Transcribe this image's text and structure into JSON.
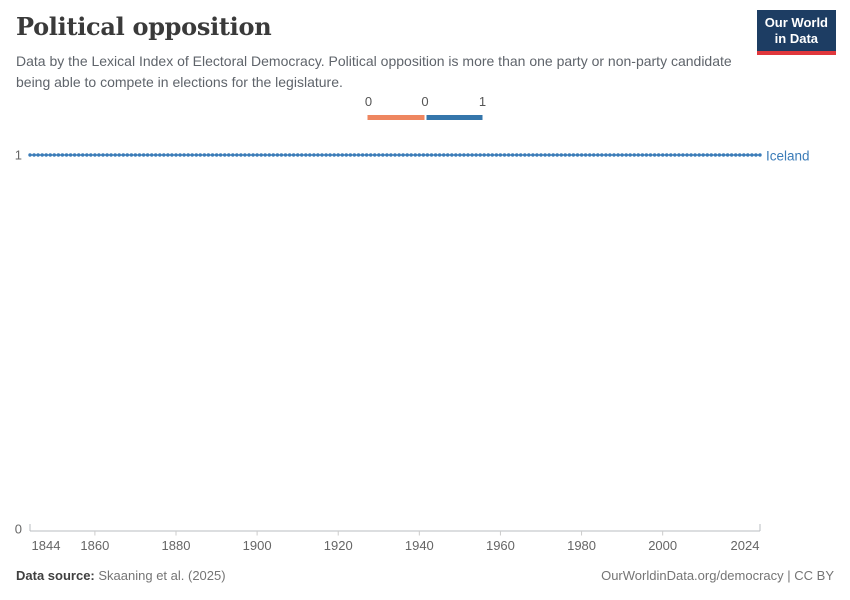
{
  "header": {
    "title": "Political opposition",
    "subtitle": "Data by the Lexical Index of Electoral Democracy. Political opposition is more than one party or non-party candidate being able to compete in elections for the legislature.",
    "logo": {
      "line1": "Our World",
      "line2": "in Data",
      "navy": "#1d3d63",
      "red": "#e0373c"
    }
  },
  "legend": {
    "boundary_labels": [
      "0",
      "0",
      "1"
    ],
    "bin_colors": [
      "#ee8660",
      "#3576ab"
    ],
    "bin_values": [
      "0",
      "1"
    ]
  },
  "chart_data": {
    "type": "line",
    "title": "Political opposition",
    "entity": "Iceland",
    "series": [
      {
        "name": "Iceland",
        "color": "#3b7cb8",
        "x_start": 1844,
        "x_end": 2024,
        "x_step": 1,
        "constant_y": 1
      }
    ],
    "xlim": [
      1844,
      2024
    ],
    "ylim": [
      0,
      1
    ],
    "x_ticks": [
      1844,
      1860,
      1880,
      1900,
      1920,
      1940,
      1960,
      1980,
      2000,
      2024
    ],
    "y_ticks": [
      0,
      1
    ],
    "grid": false,
    "legend_position": "top-center",
    "marker": "circle",
    "axis_color": "#b9bcc0",
    "tick_color": "#cccccc",
    "tick_label_color": "#666666"
  },
  "footer": {
    "source_label": "Data source:",
    "source_value": "Skaaning et al. (2025)",
    "url": "OurWorldinData.org/democracy",
    "separator": " | ",
    "license": "CC BY"
  }
}
